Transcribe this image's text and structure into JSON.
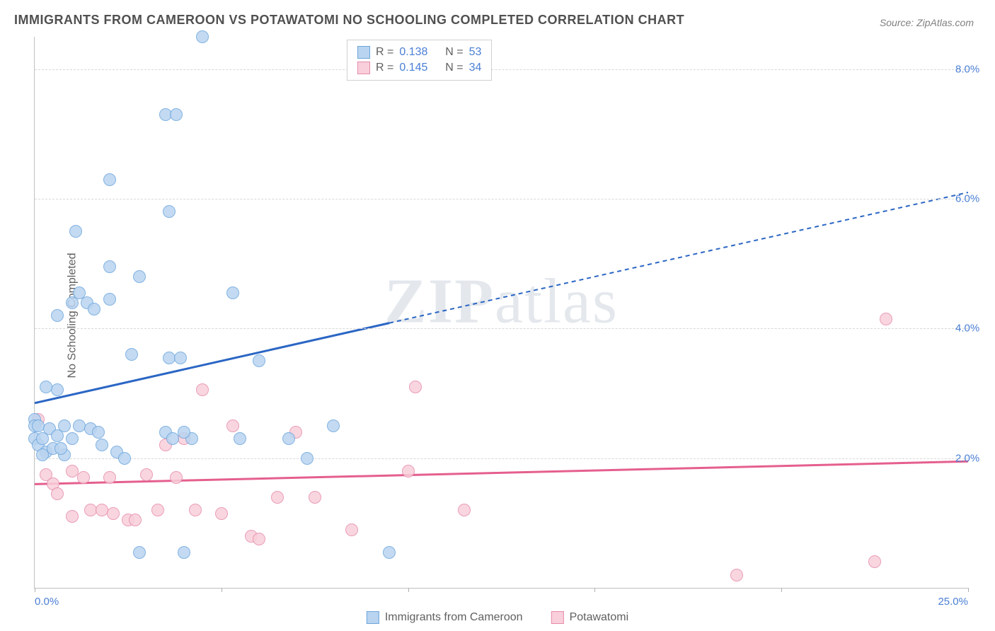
{
  "title": "IMMIGRANTS FROM CAMEROON VS POTAWATOMI NO SCHOOLING COMPLETED CORRELATION CHART",
  "source": "Source: ZipAtlas.com",
  "ylabel": "No Schooling Completed",
  "watermark": {
    "part1": "ZIP",
    "part2": "atlas"
  },
  "chart": {
    "type": "scatter",
    "xlim": [
      0,
      25
    ],
    "ylim": [
      0,
      8.5
    ],
    "background_color": "#ffffff",
    "grid_color": "#d8d8d8",
    "axis_color": "#c0c0c0",
    "tick_label_color": "#4a7fd4",
    "yticks": [
      2.0,
      4.0,
      6.0,
      8.0
    ],
    "ytick_labels": [
      "2.0%",
      "4.0%",
      "6.0%",
      "8.0%"
    ],
    "xticks": [
      0,
      5,
      10,
      15,
      20,
      25
    ],
    "xtick_labels_shown": {
      "0": "0.0%",
      "25": "25.0%"
    },
    "marker_radius": 9,
    "marker_border_width": 1.5
  },
  "series": {
    "a": {
      "label": "Immigrants from Cameroon",
      "fill": "#b9d4f0",
      "stroke": "#6da6dd",
      "trend": {
        "color": "#2b66c4",
        "width": 3,
        "y_start": 2.85,
        "y_end": 6.1,
        "solid_until_x": 9.5
      },
      "stats": {
        "R": "0.138",
        "N": "53"
      },
      "points": [
        [
          0.0,
          2.6
        ],
        [
          0.0,
          2.5
        ],
        [
          0.1,
          2.5
        ],
        [
          0.0,
          2.3
        ],
        [
          0.1,
          2.2
        ],
        [
          0.2,
          2.3
        ],
        [
          0.3,
          2.1
        ],
        [
          0.6,
          3.05
        ],
        [
          0.4,
          2.45
        ],
        [
          0.5,
          2.15
        ],
        [
          0.6,
          2.35
        ],
        [
          0.8,
          2.5
        ],
        [
          1.0,
          2.3
        ],
        [
          1.2,
          2.5
        ],
        [
          1.5,
          2.45
        ],
        [
          1.7,
          2.4
        ],
        [
          1.4,
          4.4
        ],
        [
          1.6,
          4.3
        ],
        [
          2.0,
          4.45
        ],
        [
          1.0,
          4.4
        ],
        [
          1.2,
          4.55
        ],
        [
          1.1,
          5.5
        ],
        [
          2.0,
          6.3
        ],
        [
          3.5,
          7.3
        ],
        [
          3.8,
          7.3
        ],
        [
          4.5,
          8.5
        ],
        [
          3.6,
          5.8
        ],
        [
          2.8,
          4.8
        ],
        [
          2.0,
          4.95
        ],
        [
          2.6,
          3.6
        ],
        [
          3.6,
          3.55
        ],
        [
          3.9,
          3.55
        ],
        [
          3.5,
          2.4
        ],
        [
          3.7,
          2.3
        ],
        [
          4.2,
          2.3
        ],
        [
          4.0,
          2.4
        ],
        [
          5.3,
          4.55
        ],
        [
          2.8,
          0.55
        ],
        [
          4.0,
          0.55
        ],
        [
          5.5,
          2.3
        ],
        [
          6.0,
          3.5
        ],
        [
          6.8,
          2.3
        ],
        [
          7.3,
          2.0
        ],
        [
          8.0,
          2.5
        ],
        [
          9.5,
          0.55
        ],
        [
          0.6,
          4.2
        ],
        [
          1.8,
          2.2
        ],
        [
          2.2,
          2.1
        ],
        [
          2.4,
          2.0
        ],
        [
          0.8,
          2.05
        ],
        [
          0.3,
          3.1
        ],
        [
          0.2,
          2.05
        ],
        [
          0.7,
          2.15
        ]
      ]
    },
    "b": {
      "label": "Potawatomi",
      "fill": "#f8cfda",
      "stroke": "#e78bac",
      "trend": {
        "color": "#e55f8e",
        "width": 3,
        "y_start": 1.6,
        "y_end": 1.95
      },
      "stats": {
        "R": "0.145",
        "N": "34"
      },
      "points": [
        [
          0.1,
          2.6
        ],
        [
          0.3,
          1.75
        ],
        [
          0.5,
          1.6
        ],
        [
          1.0,
          1.8
        ],
        [
          1.3,
          1.7
        ],
        [
          1.5,
          1.2
        ],
        [
          1.8,
          1.2
        ],
        [
          2.1,
          1.15
        ],
        [
          2.5,
          1.05
        ],
        [
          2.7,
          1.05
        ],
        [
          3.0,
          1.75
        ],
        [
          3.3,
          1.2
        ],
        [
          3.5,
          2.2
        ],
        [
          4.0,
          2.3
        ],
        [
          4.3,
          1.2
        ],
        [
          4.5,
          3.05
        ],
        [
          5.0,
          1.15
        ],
        [
          5.3,
          2.5
        ],
        [
          5.8,
          0.8
        ],
        [
          6.0,
          0.75
        ],
        [
          6.5,
          1.4
        ],
        [
          7.0,
          2.4
        ],
        [
          7.5,
          1.4
        ],
        [
          8.5,
          0.9
        ],
        [
          10.0,
          1.8
        ],
        [
          10.2,
          3.1
        ],
        [
          11.5,
          1.2
        ],
        [
          18.8,
          0.2
        ],
        [
          22.5,
          0.4
        ],
        [
          22.8,
          4.15
        ],
        [
          1.0,
          1.1
        ],
        [
          2.0,
          1.7
        ],
        [
          3.8,
          1.7
        ],
        [
          0.6,
          1.45
        ]
      ]
    }
  },
  "legend_stats": {
    "r_label": "R =",
    "n_label": "N ="
  },
  "bottom_legend_order": [
    "a",
    "b"
  ]
}
